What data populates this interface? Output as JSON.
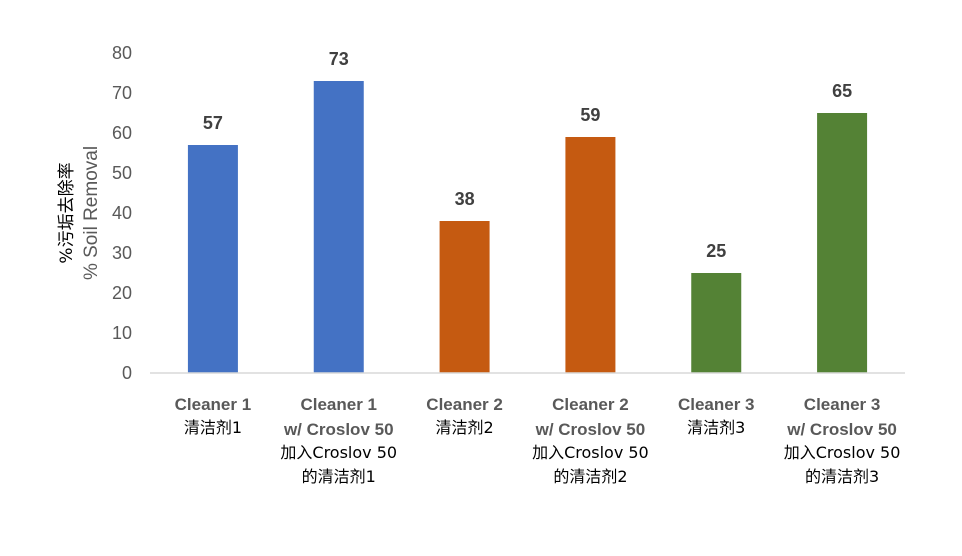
{
  "chart_data": {
    "type": "bar",
    "title": "",
    "ylabel_lines": [
      "%污垢去除率",
      "% Soil Removal"
    ],
    "ylim": [
      0,
      80
    ],
    "yticks": [
      0,
      10,
      20,
      30,
      40,
      50,
      60,
      70,
      80
    ],
    "grid": false,
    "categories": [
      {
        "lines": [
          "Cleaner 1"
        ],
        "zh_lines": [
          "清洁剂1"
        ]
      },
      {
        "lines": [
          "Cleaner 1",
          "w/ Croslov 50"
        ],
        "zh_lines": [
          "加入Croslov 50",
          "的清洁剂1"
        ]
      },
      {
        "lines": [
          "Cleaner 2"
        ],
        "zh_lines": [
          "清洁剂2"
        ]
      },
      {
        "lines": [
          "Cleaner 2",
          "w/ Croslov 50"
        ],
        "zh_lines": [
          "加入Croslov 50",
          "的清洁剂2"
        ]
      },
      {
        "lines": [
          "Cleaner 3"
        ],
        "zh_lines": [
          "清洁剂3"
        ]
      },
      {
        "lines": [
          "Cleaner 3",
          "w/ Croslov 50"
        ],
        "zh_lines": [
          "加入Croslov 50",
          "的清洁剂3"
        ]
      }
    ],
    "values": [
      57,
      73,
      38,
      59,
      25,
      65
    ],
    "data_labels": [
      "57",
      "73",
      "38",
      "59",
      "25",
      "65"
    ],
    "colors": [
      "#4472C4",
      "#4472C4",
      "#C55A11",
      "#C55A11",
      "#548235",
      "#548235"
    ],
    "axis_color": "#D9D9D9"
  }
}
